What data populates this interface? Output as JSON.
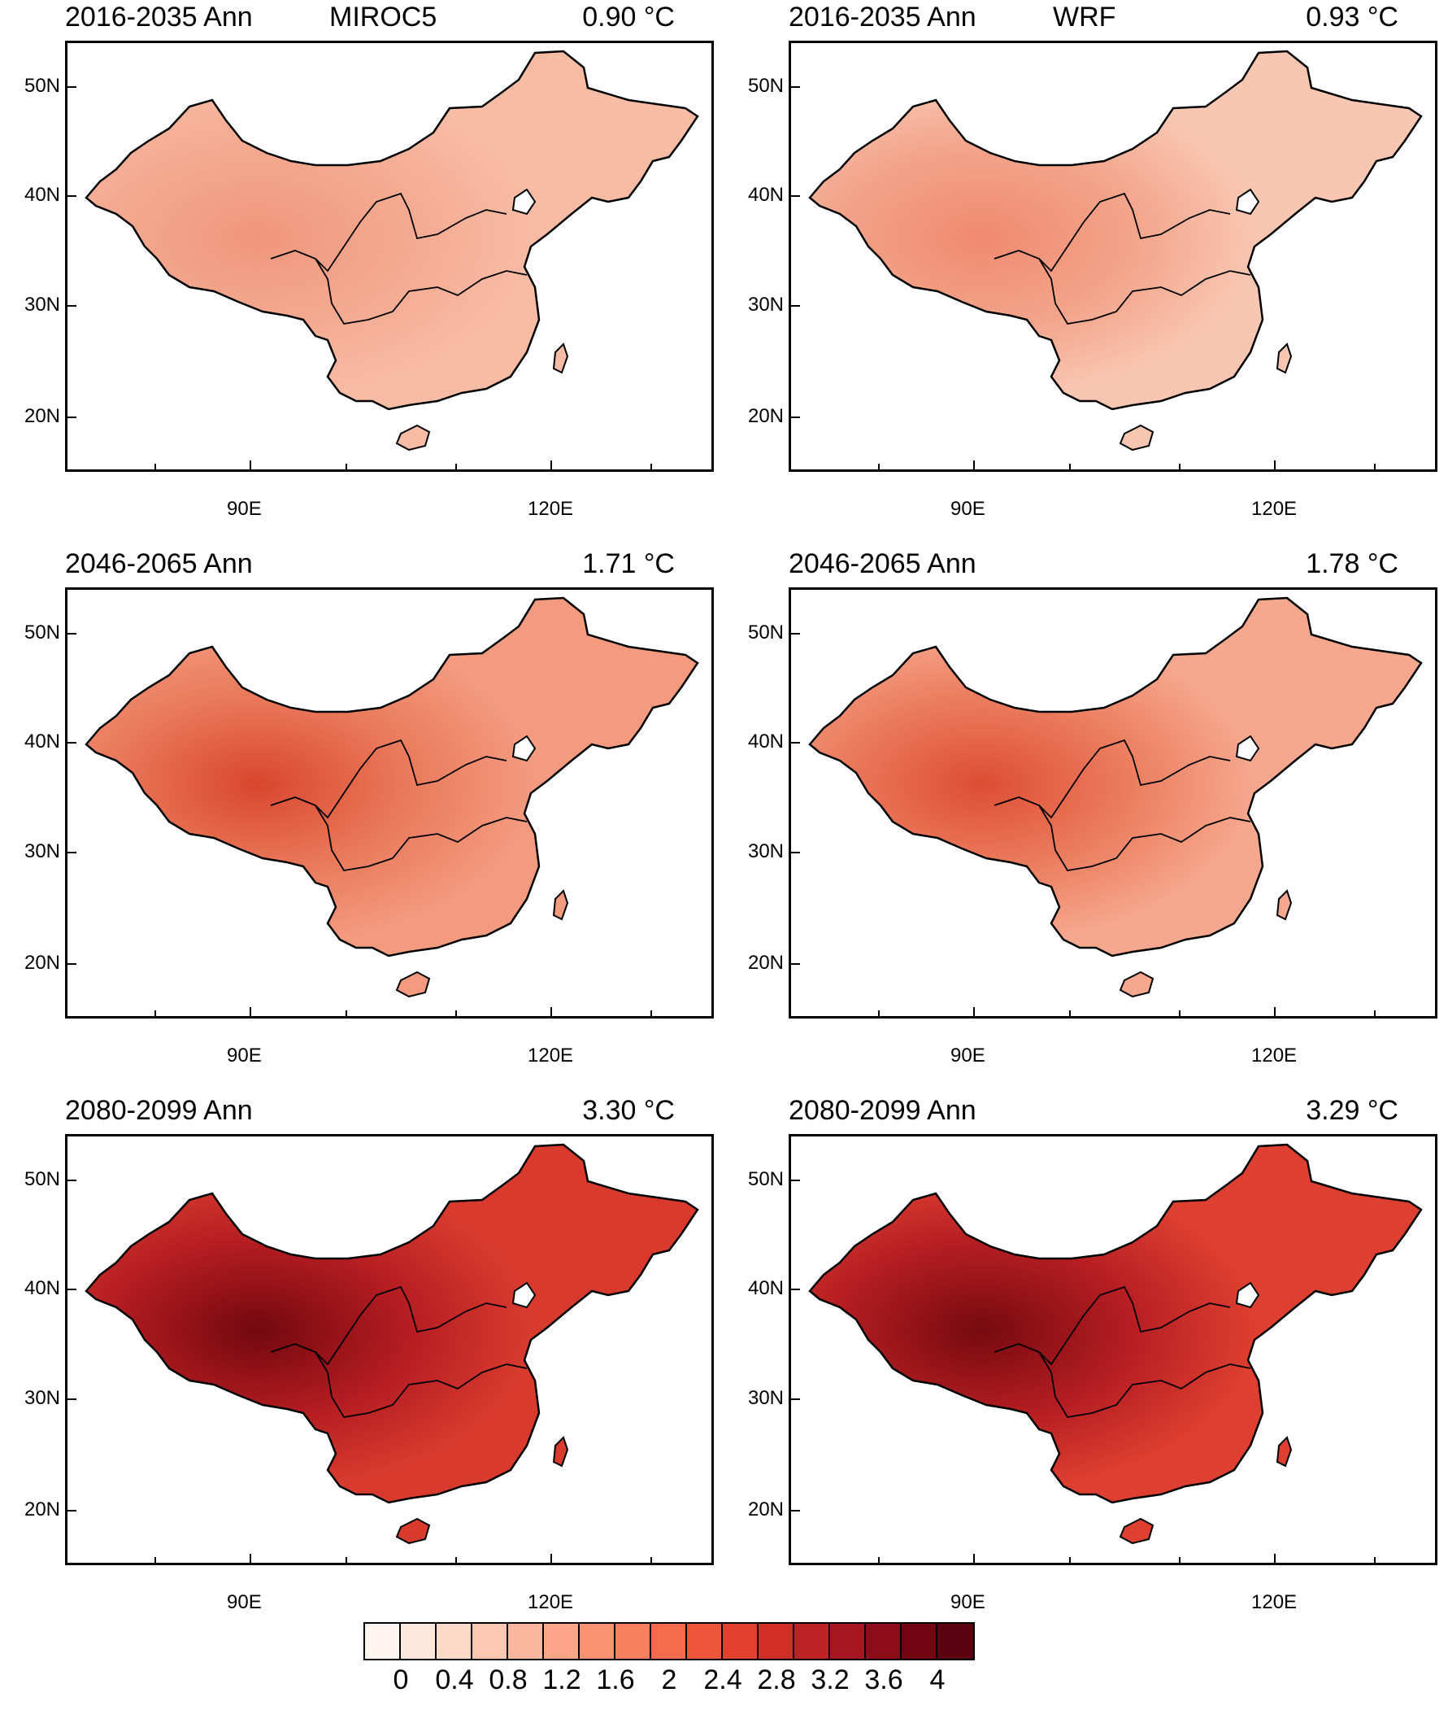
{
  "panels": [
    {
      "period": "2016-2035 Ann",
      "model": "MIROC5",
      "mean": "0.90 °C",
      "fill": "#f8bba4",
      "hot": "#f0967c",
      "hot2": "#f4aa90"
    },
    {
      "period": "2016-2035 Ann",
      "model": "WRF",
      "mean": "0.93 °C",
      "fill": "#f9c6b2",
      "hot": "#ef8a6f",
      "hot2": "#f3a48a"
    },
    {
      "period": "2046-2065 Ann",
      "model": "",
      "mean": "1.71 °C",
      "fill": "#f39a7f",
      "hot": "#d9462e",
      "hot2": "#ea7a5c"
    },
    {
      "period": "2046-2065 Ann",
      "model": "",
      "mean": "1.78 °C",
      "fill": "#f6a88e",
      "hot": "#dd4d34",
      "hot2": "#ec7e60"
    },
    {
      "period": "2080-2099 Ann",
      "model": "",
      "mean": "3.30 °C",
      "fill": "#d83b2e",
      "hot": "#730810",
      "hot2": "#b51d21"
    },
    {
      "period": "2080-2099 Ann",
      "model": "",
      "mean": "3.29 °C",
      "fill": "#dd3f30",
      "hot": "#760a10",
      "hot2": "#b61e22"
    }
  ],
  "axes": {
    "lat_labels": [
      "50N",
      "40N",
      "30N",
      "20N"
    ],
    "lon_labels": [
      "90E",
      "120E"
    ]
  },
  "colorbar": {
    "colors": [
      "#fff5f0",
      "#fee8dd",
      "#fdd9c8",
      "#fcc8b3",
      "#fbb79d",
      "#fca588",
      "#fb9373",
      "#f7805f",
      "#f56c4c",
      "#ee563a",
      "#e2402e",
      "#d12f26",
      "#bd2225",
      "#a71721",
      "#8e0d1a",
      "#720511",
      "#5b0110"
    ],
    "labels": [
      "0",
      "0.4",
      "0.8",
      "1.2",
      "1.6",
      "2",
      "2.4",
      "2.8",
      "3.2",
      "3.6",
      "4"
    ]
  }
}
